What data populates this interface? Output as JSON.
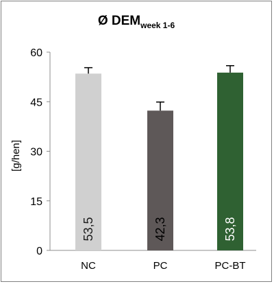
{
  "chart_data": {
    "type": "bar",
    "title": "Ø DEM",
    "title_subscript": "week 1-6",
    "ylabel": "[g/hen]",
    "xlabel": "",
    "ylim": [
      0,
      60
    ],
    "yticks": [
      0,
      15,
      30,
      45,
      60
    ],
    "ytick_labels": [
      "0",
      "15",
      "30",
      "45",
      "60"
    ],
    "grid": false,
    "legend": "none",
    "categories": [
      "NC",
      "PC",
      "PC-BT"
    ],
    "values": [
      53.5,
      42.3,
      53.8
    ],
    "error_bars": [
      1.8,
      2.6,
      2.1
    ],
    "data_labels": [
      "53,5",
      "42,3",
      "53,8"
    ],
    "colors": [
      "#d0d0d0",
      "#5e5858",
      "#2f6132"
    ],
    "data_label_colors": [
      "#1a1a1a",
      "#000000",
      "#ffffff"
    ]
  }
}
